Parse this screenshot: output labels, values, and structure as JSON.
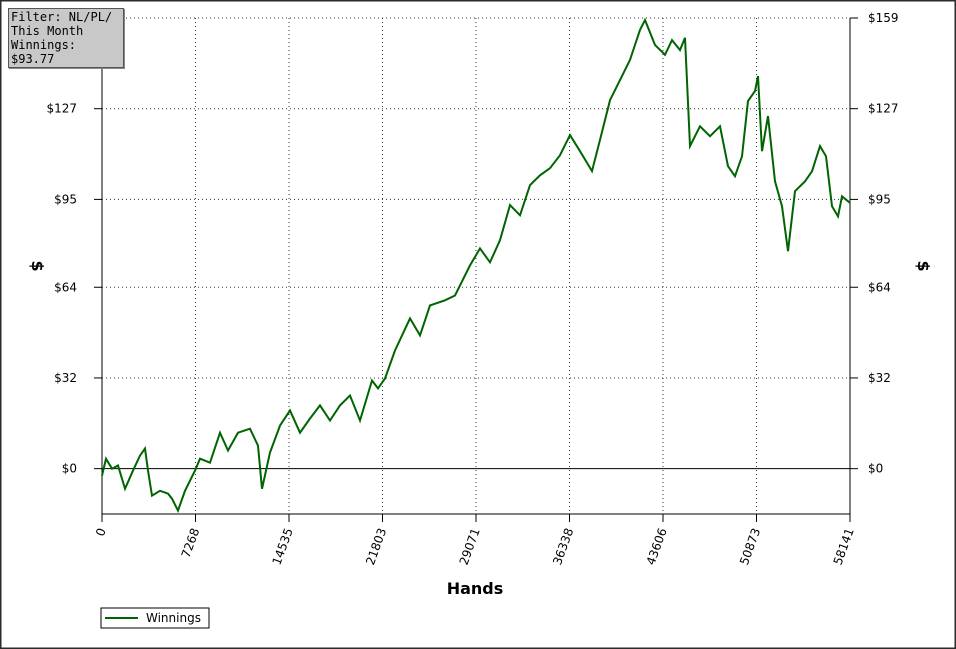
{
  "chart_data": {
    "type": "line",
    "info": [
      "Filter: NL/PL/",
      "This Month",
      "Winnings: $93.77"
    ],
    "x_label": "Hands",
    "y_label": "$",
    "y2_label": "$",
    "xlim": [
      0,
      58141
    ],
    "ylim": [
      -16,
      159
    ],
    "xticks": [
      0,
      7268,
      14535,
      21803,
      29071,
      36338,
      43606,
      50873,
      58141
    ],
    "yticks": [
      {
        "value": 0,
        "label": "$0"
      },
      {
        "value": 32,
        "label": "$32"
      },
      {
        "value": 64,
        "label": "$64"
      },
      {
        "value": 95,
        "label": "$95"
      },
      {
        "value": 127,
        "label": "$127"
      },
      {
        "value": 159,
        "label": "$159"
      }
    ],
    "grid": true,
    "legend": "bottom-left",
    "x": [
      0,
      311,
      777,
      1244,
      1788,
      2410,
      2954,
      3342,
      3576,
      3887,
      4508,
      5130,
      5441,
      5907,
      6452,
      7229,
      7618,
      8395,
      9172,
      9794,
      10571,
      11504,
      12126,
      12437,
      13059,
      13836,
      14614,
      15391,
      16168,
      16945,
      17722,
      18500,
      19277,
      20054,
      20987,
      21453,
      21997,
      22774,
      23940,
      24718,
      25495,
      26661,
      27439,
      28605,
      29382,
      30159,
      30937,
      31714,
      32491,
      33268,
      34046,
      34823,
      35600,
      36378,
      37155,
      38088,
      38709,
      39487,
      40264,
      41041,
      41818,
      42207,
      42985,
      43762,
      44306,
      44928,
      45317,
      45705,
      46483,
      47260,
      48037,
      48660,
      49204,
      49748,
      50214,
      50759,
      50991,
      51302,
      51769,
      52313,
      52857,
      53323,
      53867,
      54645,
      55189,
      55811,
      56277,
      56744,
      57210,
      57521,
      58141
    ],
    "series": [
      {
        "name": "Winnings",
        "color": "#006400",
        "values": [
          -2.5,
          3.5,
          0,
          1.1,
          -7.1,
          -0.7,
          4.6,
          7.1,
          -0.7,
          -9.5,
          -7.8,
          -8.8,
          -10.6,
          -14.8,
          -7.8,
          -0.7,
          3.5,
          2.1,
          12.7,
          6.4,
          12.7,
          14.1,
          8.1,
          -7.1,
          5.7,
          15.2,
          20.5,
          12.7,
          17.7,
          22.3,
          17,
          22.3,
          25.8,
          17,
          31.1,
          28.3,
          31.8,
          41.7,
          53,
          47,
          57.6,
          59.4,
          61.1,
          71.7,
          77.7,
          72.8,
          80.6,
          93,
          89.4,
          100,
          103.5,
          106,
          110.6,
          117.7,
          112,
          105,
          116,
          130,
          137.1,
          144.2,
          154.8,
          158.3,
          149.5,
          146,
          151.2,
          147.7,
          152,
          113.8,
          120.8,
          117.3,
          120.8,
          106.7,
          103.2,
          110.2,
          129.7,
          133.2,
          138.5,
          112,
          124.4,
          101.4,
          92.6,
          76.7,
          97.9,
          101.4,
          104.9,
          113.8,
          110.2,
          92.6,
          89,
          96.1,
          93.77
        ]
      }
    ]
  }
}
